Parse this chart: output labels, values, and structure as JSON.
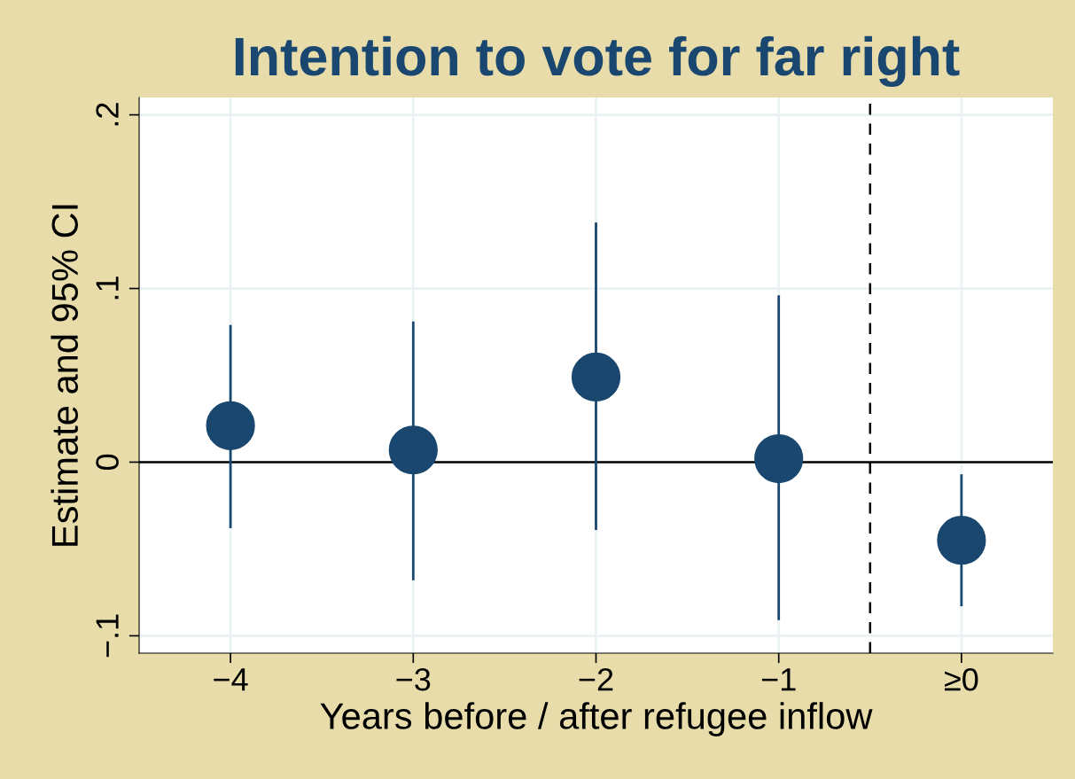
{
  "chart_data": {
    "type": "scatter",
    "title": "Intention to vote for far right",
    "xlabel": "Years before / after refugee inflow",
    "ylabel": "Estimate and 95% CI",
    "x": [
      -4,
      -3,
      -2,
      -1,
      0
    ],
    "series": [
      {
        "color": "#1a476f",
        "values": [
          0.021,
          0.007,
          0.049,
          0.002,
          -0.045
        ],
        "errors": [
          [
            -0.038,
            0.079
          ],
          [
            -0.068,
            0.081
          ],
          [
            -0.039,
            0.138
          ],
          [
            -0.091,
            0.096
          ],
          [
            -0.083,
            -0.007
          ]
        ]
      }
    ],
    "xlim": [
      -4.5,
      0.5
    ],
    "xticks": [
      {
        "value": -4,
        "label": "−4"
      },
      {
        "value": -3,
        "label": "−3"
      },
      {
        "value": -2,
        "label": "−2"
      },
      {
        "value": -1,
        "label": "−1"
      },
      {
        "value": 0,
        "label": "≥0"
      }
    ],
    "ylim": [
      -0.11,
      0.21
    ],
    "yticks": [
      {
        "value": -0.1,
        "label": "−.1"
      },
      {
        "value": 0,
        "label": "0"
      },
      {
        "value": 0.1,
        "label": ".1"
      },
      {
        "value": 0.2,
        "label": ".2"
      }
    ],
    "ref_lines": [
      {
        "axis": "y",
        "value": 0,
        "color": "#000000",
        "line_style": "solid"
      },
      {
        "axis": "x",
        "value": -0.5,
        "color": "#000000",
        "line_style": "dashed"
      }
    ],
    "grid": true,
    "marker": "circle"
  }
}
